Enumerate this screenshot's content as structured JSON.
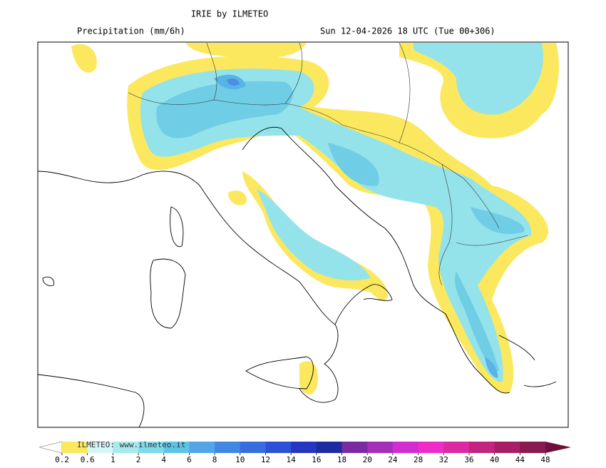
{
  "header": {
    "title": "IRIE by ILMETEO",
    "variable": "Precipitation (mm/6h)",
    "valid_time": "Sun 12-04-2026 18 UTC (Tue 00+306)"
  },
  "colorbar": {
    "watermark": "ILMETEO: www.ilmeteo.it",
    "labels": [
      0.2,
      0.6,
      1,
      2,
      4,
      6,
      8,
      10,
      12,
      14,
      16,
      18,
      20,
      24,
      28,
      32,
      36,
      40,
      44,
      48
    ],
    "colors": [
      "#fbe85e",
      "#d6f5f5",
      "#a6eaee",
      "#7fdbea",
      "#5ec4e6",
      "#52a6e6",
      "#4088e4",
      "#386ddf",
      "#2c50d6",
      "#2537c0",
      "#1d2aa0",
      "#7b2aa2",
      "#a52fba",
      "#d02ed0",
      "#ee2dc8",
      "#dc2aa2",
      "#c2247e",
      "#a61e66",
      "#8a1a52"
    ],
    "over_color": "#6e0f3c"
  }
}
